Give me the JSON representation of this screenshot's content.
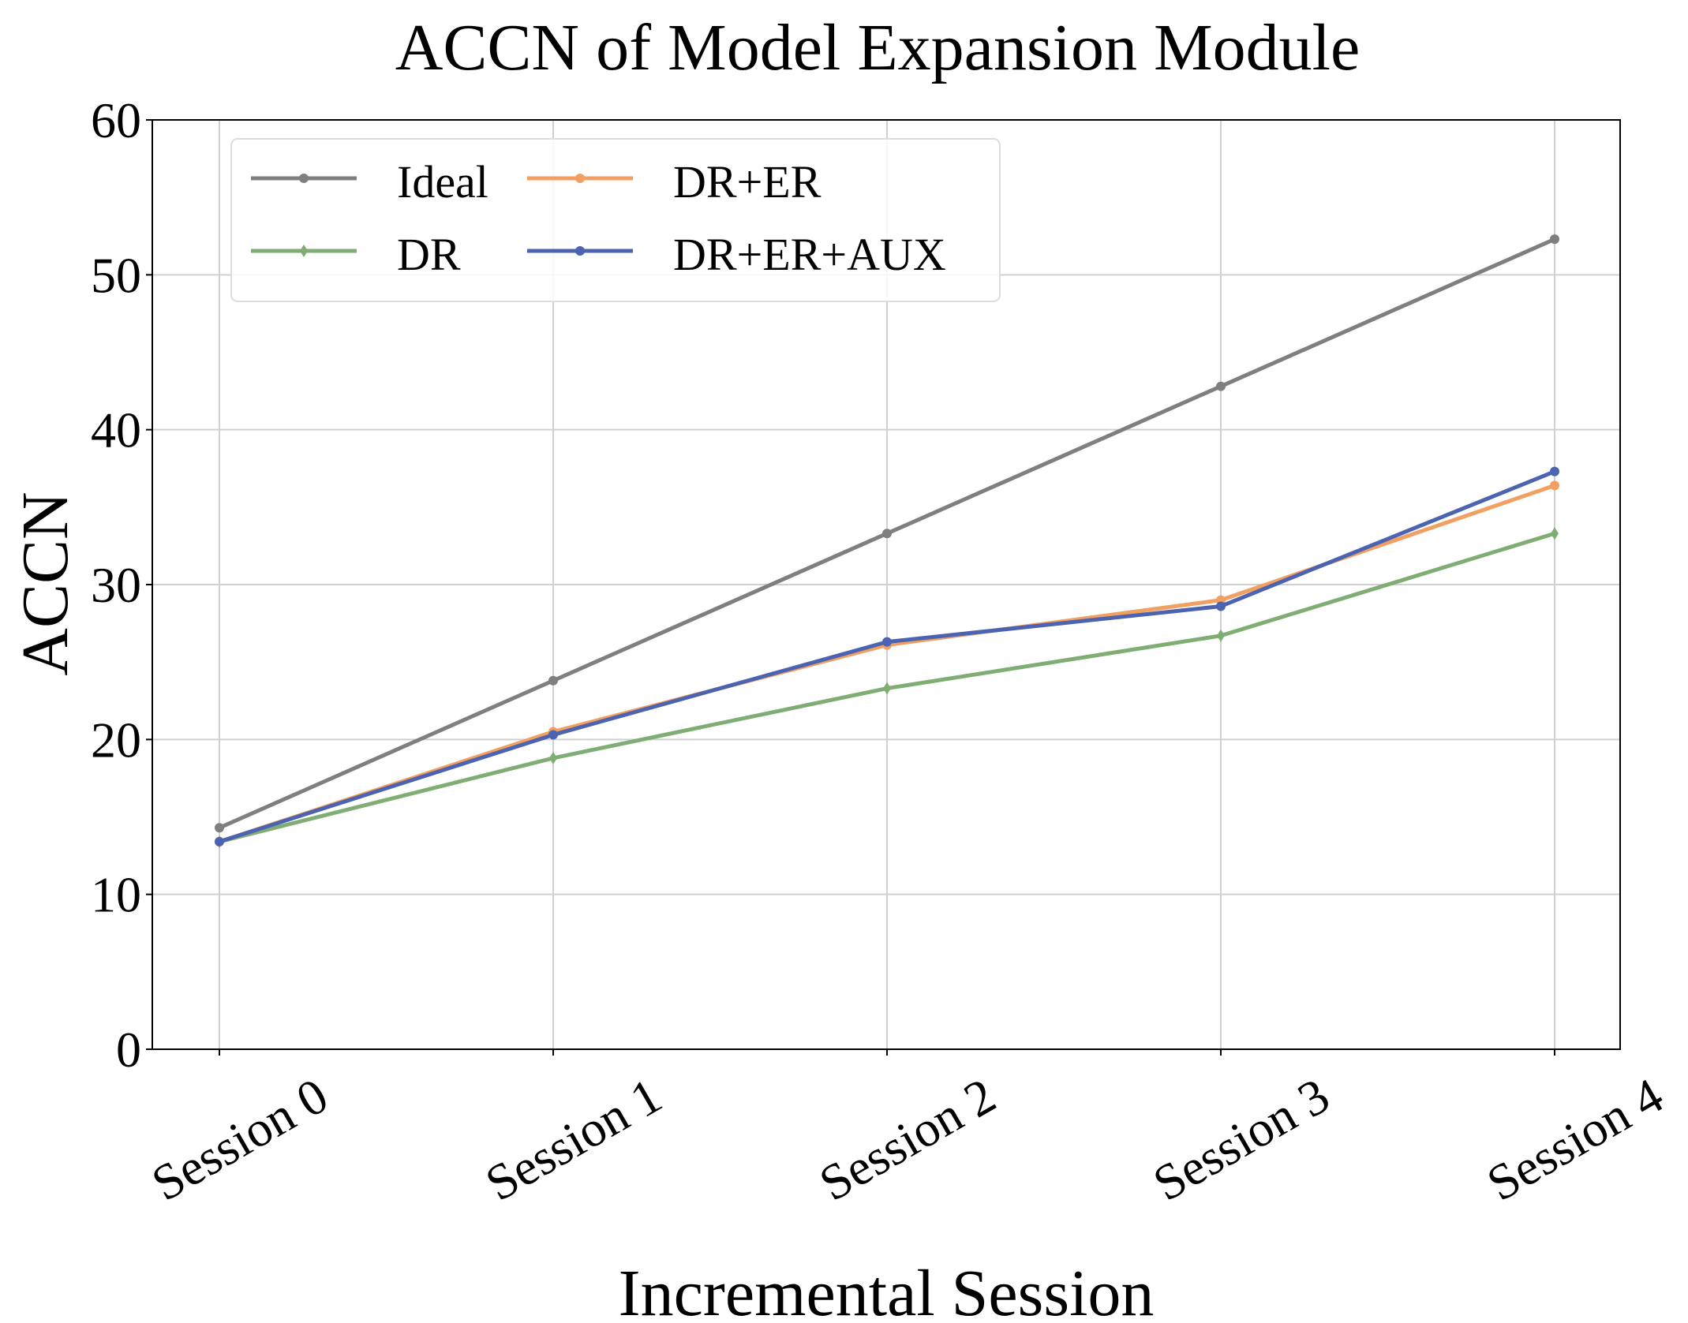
{
  "chart_data": {
    "type": "line",
    "title": "ACCN of Model Expansion Module",
    "xlabel": "Incremental Session",
    "ylabel": "ACCN",
    "categories": [
      "Session 0",
      "Session 1",
      "Session 2",
      "Session 3",
      "Session 4"
    ],
    "ylim": [
      0,
      60
    ],
    "yticks": [
      "0",
      "10",
      "20",
      "30",
      "40",
      "50",
      "60"
    ],
    "grid": true,
    "legend_position": "top-left",
    "series": [
      {
        "name": "Ideal",
        "color": "#7f7f7f",
        "marker": "circle",
        "values": [
          14.3,
          23.8,
          33.3,
          42.8,
          52.3
        ]
      },
      {
        "name": "DR",
        "color": "#80ad74",
        "marker": "diamond",
        "values": [
          13.4,
          18.8,
          23.3,
          26.7,
          33.3
        ]
      },
      {
        "name": "DR+ER",
        "color": "#f2a062",
        "marker": "circle",
        "values": [
          13.4,
          20.5,
          26.1,
          29.0,
          36.4
        ]
      },
      {
        "name": "DR+ER+AUX",
        "color": "#4b63b0",
        "marker": "circle",
        "values": [
          13.4,
          20.3,
          26.3,
          28.6,
          37.3
        ]
      }
    ]
  }
}
